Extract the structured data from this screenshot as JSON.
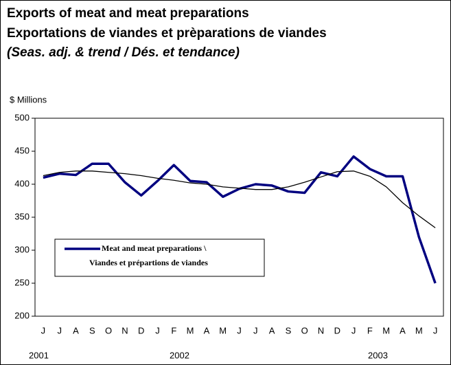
{
  "chart_data": {
    "type": "line",
    "title": "Exports of meat and meat preparations",
    "subtitle": "Exportations de viandes et prèparations de viandes",
    "note": "(Seas. adj. & trend / Dés. et tendance)",
    "y_label": "$ Millions",
    "categories": [
      "J",
      "J",
      "A",
      "S",
      "O",
      "N",
      "D",
      "J",
      "F",
      "M",
      "A",
      "M",
      "J",
      "J",
      "A",
      "S",
      "O",
      "N",
      "D",
      "J",
      "F",
      "M",
      "A",
      "M",
      "J"
    ],
    "year_labels": [
      "2001",
      "2002",
      "2003"
    ],
    "ylim": [
      200,
      500
    ],
    "yticks": [
      200,
      250,
      300,
      350,
      400,
      450,
      500
    ],
    "grid": false,
    "legend": "lower-left",
    "series": [
      {
        "name": "Meat and meat preparations \\\nViandes et prépartions de viandes",
        "color": "#000080",
        "width": 3.5,
        "values": [
          410,
          416,
          414,
          431,
          431,
          403,
          383,
          405,
          429,
          405,
          403,
          381,
          393,
          400,
          398,
          389,
          387,
          418,
          412,
          442,
          423,
          412,
          412,
          320,
          250
        ]
      },
      {
        "color": "#000000",
        "width": 1.3,
        "values": [
          413,
          418,
          420,
          420,
          418,
          416,
          413,
          409,
          406,
          402,
          400,
          396,
          394,
          392,
          392,
          396,
          403,
          411,
          419,
          420,
          412,
          396,
          372,
          352,
          334
        ]
      }
    ]
  }
}
